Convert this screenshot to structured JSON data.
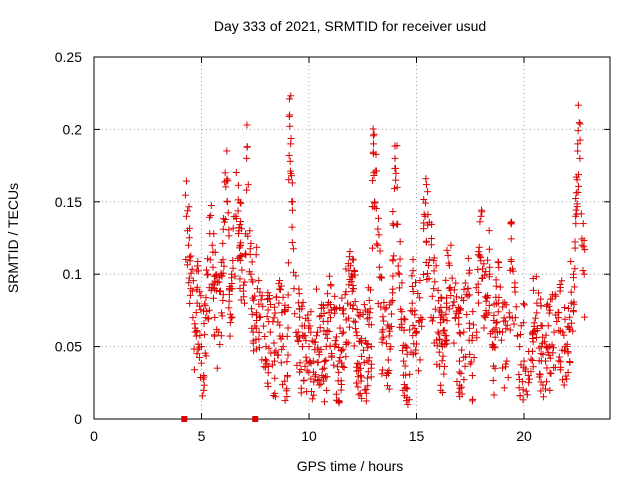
{
  "chart_data": {
    "type": "scatter",
    "title": "Day 333 of 2021, SRMTID for receiver usud",
    "xlabel": "GPS time / hours",
    "ylabel": "SRMTID / TECUs",
    "xlim": [
      0,
      24
    ],
    "ylim": [
      0,
      0.25
    ],
    "xticks": [
      0,
      5,
      10,
      15,
      20
    ],
    "xtick_labels": [
      "0",
      "5",
      "10",
      "15",
      "20"
    ],
    "yticks": [
      0,
      0.05,
      0.1,
      0.15,
      0.2,
      0.25
    ],
    "ytick_labels": [
      "0",
      "0.05",
      "0.1",
      "0.15",
      "0.2",
      "0.25"
    ],
    "grid": true,
    "marker": "+",
    "marker_color": "#dd0000",
    "series": [
      {
        "name": "SRMTID",
        "x": [
          4.3,
          4.35,
          4.4,
          4.5,
          4.6,
          4.7,
          4.8,
          5.0,
          5.1,
          5.2,
          5.3,
          5.5,
          5.6,
          5.8,
          6.0,
          6.1,
          6.2,
          6.3,
          6.4,
          6.6,
          6.8,
          7.0,
          7.1,
          7.3,
          7.4,
          7.6,
          7.7,
          8.0,
          8.2,
          8.4,
          8.6,
          8.8,
          9.0,
          9.1,
          9.15,
          9.2,
          9.3,
          9.5,
          9.7,
          9.9,
          10.0,
          10.2,
          10.4,
          10.6,
          10.8,
          11.0,
          11.2,
          11.4,
          11.6,
          11.8,
          12.0,
          12.2,
          12.4,
          12.6,
          12.7,
          12.8,
          12.9,
          13.0,
          13.2,
          13.4,
          13.6,
          13.8,
          13.9,
          14.0,
          14.1,
          14.2,
          14.4,
          14.6,
          14.8,
          15.0,
          15.2,
          15.4,
          15.6,
          15.8,
          16.0,
          16.2,
          16.4,
          16.6,
          16.8,
          17.0,
          17.2,
          17.4,
          17.6,
          17.8,
          18.0,
          18.2,
          18.4,
          18.6,
          18.8,
          19.0,
          19.2,
          19.4,
          19.6,
          19.8,
          20.0,
          20.2,
          20.4,
          20.6,
          20.8,
          21.0,
          21.2,
          21.4,
          21.6,
          21.8,
          22.0,
          22.2,
          22.3,
          22.4,
          22.5,
          22.6,
          22.7,
          22.8
        ],
        "y": [
          0.14,
          0.13,
          0.12,
          0.09,
          0.07,
          0.06,
          0.08,
          0.05,
          0.03,
          0.07,
          0.1,
          0.12,
          0.09,
          0.06,
          0.11,
          0.17,
          0.15,
          0.09,
          0.1,
          0.14,
          0.12,
          0.08,
          0.18,
          0.1,
          0.06,
          0.09,
          0.07,
          0.05,
          0.06,
          0.04,
          0.08,
          0.05,
          0.03,
          0.21,
          0.19,
          0.15,
          0.09,
          0.06,
          0.05,
          0.04,
          0.05,
          0.04,
          0.06,
          0.03,
          0.05,
          0.07,
          0.05,
          0.04,
          0.06,
          0.08,
          0.1,
          0.06,
          0.03,
          0.02,
          0.04,
          0.07,
          0.05,
          0.19,
          0.12,
          0.06,
          0.03,
          0.05,
          0.11,
          0.18,
          0.16,
          0.1,
          0.04,
          0.01,
          0.08,
          0.06,
          0.07,
          0.14,
          0.11,
          0.09,
          0.06,
          0.05,
          0.08,
          0.12,
          0.07,
          0.04,
          0.06,
          0.09,
          0.03,
          0.06,
          0.14,
          0.07,
          0.1,
          0.05,
          0.08,
          0.06,
          0.04,
          0.11,
          0.07,
          0.05,
          0.04,
          0.03,
          0.06,
          0.08,
          0.05,
          0.04,
          0.05,
          0.06,
          0.07,
          0.06,
          0.05,
          0.08,
          0.1,
          0.14,
          0.19,
          0.18,
          0.12,
          0.1
        ]
      }
    ],
    "square_marks_x": [
      4.2,
      7.5
    ]
  }
}
